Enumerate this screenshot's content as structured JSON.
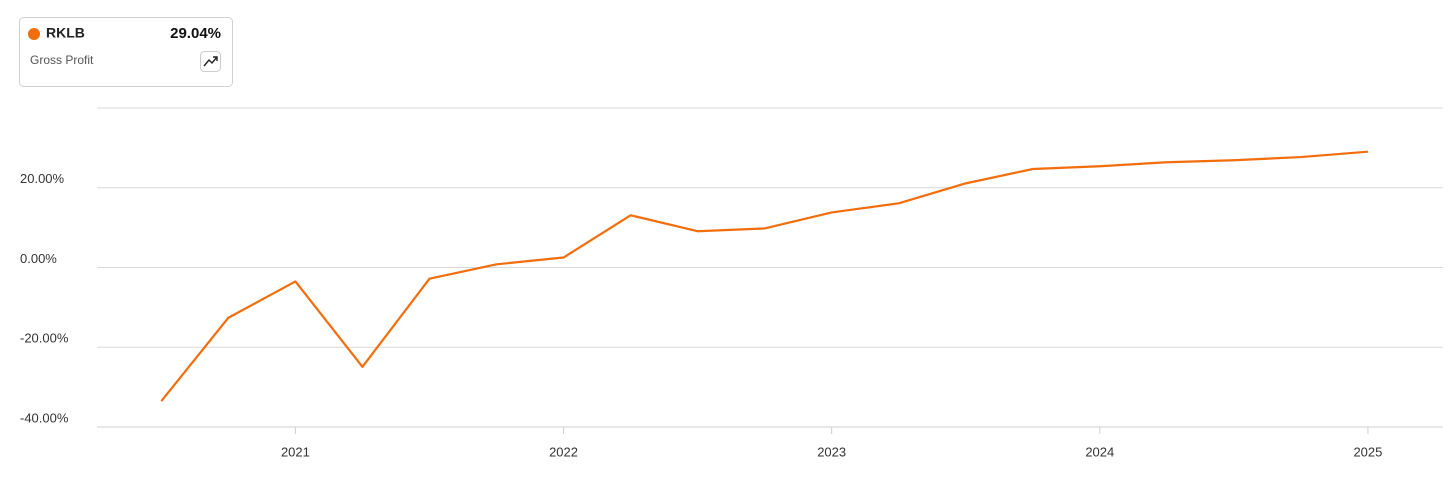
{
  "chart_data": {
    "type": "line",
    "series": [
      {
        "name": "RKLB",
        "color": "#f26d0c",
        "x": [
          2020.5,
          2020.75,
          2021,
          2021.25,
          2021.5,
          2021.75,
          2022,
          2022.25,
          2022.5,
          2022.75,
          2023,
          2023.25,
          2023.5,
          2023.75,
          2024,
          2024.25,
          2024.5,
          2024.75,
          2025
        ],
        "values": [
          -33.5,
          -12.6,
          -3.5,
          -24.9,
          -2.8,
          0.8,
          2.5,
          13.1,
          9.1,
          9.8,
          13.8,
          16.1,
          21.1,
          24.7,
          25.4,
          26.4,
          26.9,
          27.7,
          29.04
        ]
      }
    ],
    "metric": "Gross Profit",
    "latest_label": "29.04%",
    "xlim": [
      2020.26,
      2025.28
    ],
    "xticks": [
      2021,
      2022,
      2023,
      2024,
      2025
    ],
    "ylim": [
      -40,
      40
    ],
    "yticks": [
      {
        "value": -40,
        "label": "-40.00%"
      },
      {
        "value": -20,
        "label": "-20.00%"
      },
      {
        "value": 0,
        "label": "0.00%"
      },
      {
        "value": 20,
        "label": "20.00%"
      }
    ],
    "grid": true
  }
}
